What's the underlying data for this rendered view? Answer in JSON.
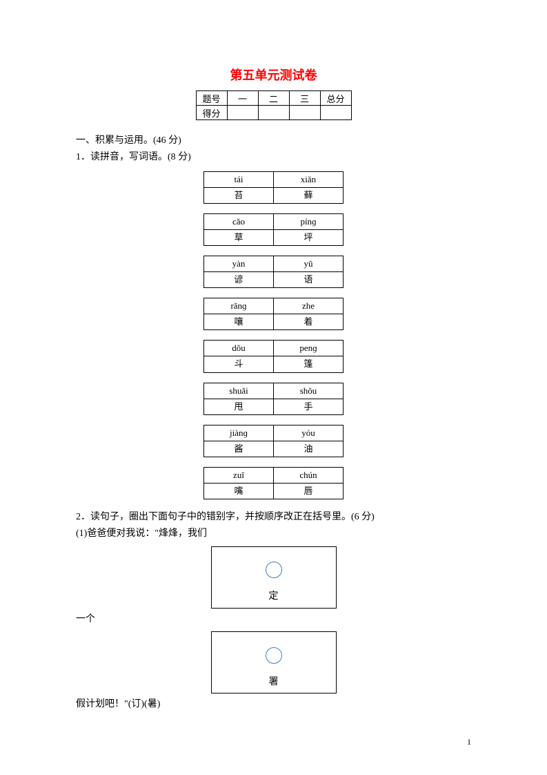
{
  "title": "第五单元测试卷",
  "scoreTable": {
    "headerRow": [
      "题号",
      "一",
      "二",
      "三",
      "总分"
    ],
    "scoreRowLabel": "得分"
  },
  "section1": {
    "heading": "一、积累与运用。(46 分)",
    "q1": {
      "prompt": "1．读拼音，写词语。(8 分)",
      "pairs": [
        {
          "pinyin1": "tái",
          "char1": "苔",
          "pinyin2": "xiǎn",
          "char2": "藓"
        },
        {
          "pinyin1": "cǎo",
          "char1": "草",
          "pinyin2": "pínɡ",
          "char2": "坪"
        },
        {
          "pinyin1": "yàn",
          "char1": "谚",
          "pinyin2": "yǔ",
          "char2": "语"
        },
        {
          "pinyin1": "rǎnɡ",
          "char1": "嚷",
          "pinyin2": "zhe",
          "char2": "着"
        },
        {
          "pinyin1": "dǒu",
          "char1": "斗",
          "pinyin2": "penɡ",
          "char2": "篷"
        },
        {
          "pinyin1": "shuǎi",
          "char1": "甩",
          "pinyin2": "shǒu",
          "char2": "手"
        },
        {
          "pinyin1": "jiànɡ",
          "char1": "酱",
          "pinyin2": "yóu",
          "char2": "油"
        },
        {
          "pinyin1": "zuǐ",
          "char1": "嘴",
          "pinyin2": "chún",
          "char2": "唇"
        }
      ]
    },
    "q2": {
      "prompt": "2．读句子，圈出下面句子中的错别字，并按顺序改正在括号里。(6 分)",
      "line1": "(1)爸爸便对我说：\"烽烽，我们",
      "box1char": "定",
      "mid": "一个",
      "box2char": "署",
      "line2": "假计划吧！\"(订)(暑)"
    }
  },
  "pageNumber": "1",
  "colors": {
    "titleRed": "#ff0000",
    "circleBlue": "#3a7fc4",
    "border": "#000000",
    "background": "#ffffff",
    "text": "#000000"
  },
  "layout": {
    "pageWidth": 793,
    "pageHeight": 1122,
    "wordCellWidth": 100,
    "scoreCellWidth": 44,
    "answerBoxWidth": 180,
    "answerBoxHeight": 88
  }
}
